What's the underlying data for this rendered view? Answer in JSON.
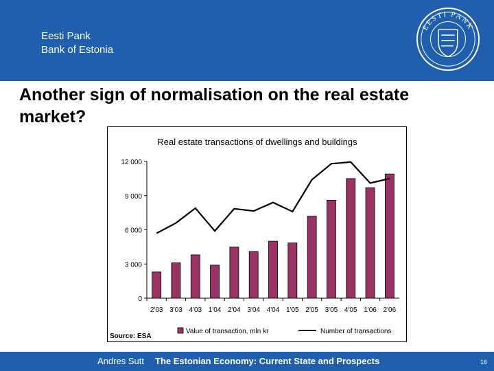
{
  "header": {
    "bank_name_et": "Eesti Pank",
    "bank_name_en": "Bank of Estonia",
    "background_color": "#1f5fae",
    "seal_text": "EESTI PANK"
  },
  "slide": {
    "title": "Another sign of normalisation on the real estate market?"
  },
  "chart_data": {
    "type": "bar",
    "title": "Real estate transactions of dwellings and buildings",
    "categories": [
      "2'03",
      "3'03",
      "4'03",
      "1'04",
      "2'04",
      "3'04",
      "4'04",
      "1'05",
      "2'05",
      "3'05",
      "4'05",
      "1'06",
      "2'06"
    ],
    "series": [
      {
        "name": "Value of transaction, mln kr",
        "kind": "bar",
        "color": "#993366",
        "values": [
          2300,
          3100,
          3800,
          2900,
          4500,
          4100,
          5000,
          4850,
          7200,
          8600,
          10500,
          9700,
          10900
        ]
      },
      {
        "name": "Number of transactions",
        "kind": "line",
        "color": "#000000",
        "values": [
          5700,
          6600,
          7900,
          5900,
          7850,
          7650,
          8400,
          7600,
          10400,
          11800,
          11950,
          10100,
          10500
        ]
      }
    ],
    "y_ticks": [
      "0",
      "3 000",
      "6 000",
      "9 000",
      "12 000"
    ],
    "ylim": [
      0,
      12000
    ],
    "grid": false,
    "legend_position": "bottom",
    "xlabel": "",
    "ylabel": ""
  },
  "source": "Source: ESA",
  "footer": {
    "author": "Andres Sutt",
    "title": "The Estonian Economy: Current State and Prospects",
    "page": "16"
  }
}
